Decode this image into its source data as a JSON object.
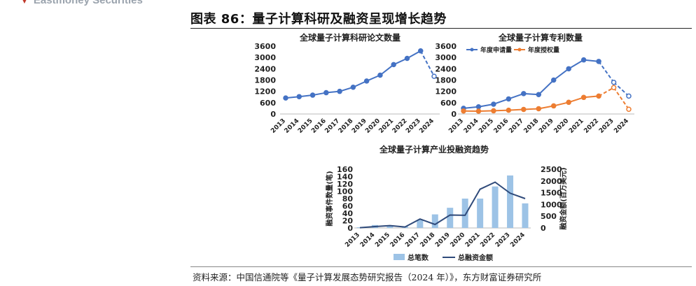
{
  "header": {
    "brand": "Eastmoney Securities"
  },
  "figure": {
    "title": "图表 86：量子计算科研及融资呈现增长趋势",
    "source": "资料来源：中国信通院等《量子计算发展态势研究报告（2024 年）》，东方财富证券研究所"
  },
  "colors": {
    "blue": "#4472c4",
    "orange": "#ed7d31",
    "bar": "#9dc3e6",
    "navy": "#2f4a7a"
  },
  "chart_data": [
    {
      "type": "line",
      "title": "全球量子计算科研论文数量",
      "categories": [
        "2013",
        "2014",
        "2015",
        "2016",
        "2017",
        "2018",
        "2019",
        "2020",
        "2021",
        "2022",
        "2023",
        "2024"
      ],
      "series": [
        {
          "values": [
            850,
            920,
            1000,
            1130,
            1200,
            1420,
            1750,
            2060,
            2620,
            2950,
            3350,
            2000
          ],
          "projected_last": true
        }
      ],
      "yticks": [
        "0",
        "600",
        "1200",
        "1800",
        "2400",
        "3000",
        "3600"
      ],
      "ylim": [
        0,
        3600
      ]
    },
    {
      "type": "line",
      "title": "全球量子计算专利数量",
      "categories": [
        "2013",
        "2014",
        "2015",
        "2016",
        "2017",
        "2018",
        "2019",
        "2020",
        "2021",
        "2022",
        "2023",
        "2024"
      ],
      "series": [
        {
          "name": "年度申请量",
          "values": [
            300,
            380,
            520,
            800,
            1080,
            1030,
            1800,
            2400,
            2870,
            2790,
            1680,
            950
          ],
          "projected_from": 10
        },
        {
          "name": "年度授权量",
          "values": [
            160,
            150,
            170,
            200,
            240,
            280,
            430,
            620,
            880,
            950,
            1400,
            250
          ],
          "projected_from": 10
        }
      ],
      "yticks": [
        "0",
        "600",
        "1200",
        "1800",
        "2400",
        "3000",
        "3600"
      ],
      "ylim": [
        0,
        3600
      ],
      "legend": "top-left"
    },
    {
      "type": "bar+line",
      "title": "全球量子计算产业投融资趋势",
      "categories": [
        "2013",
        "2014",
        "2015",
        "2016",
        "2017",
        "2018",
        "2019",
        "2020",
        "2021",
        "2022",
        "2023",
        "2024"
      ],
      "series": [
        {
          "name": "总笔数",
          "kind": "bar",
          "axis": "left",
          "values": [
            2,
            8,
            6,
            4,
            22,
            37,
            55,
            80,
            80,
            113,
            143,
            67
          ]
        },
        {
          "name": "总融资金额",
          "kind": "line",
          "axis": "right",
          "values": [
            10,
            60,
            100,
            40,
            380,
            150,
            550,
            540,
            1650,
            1950,
            1480,
            1250
          ]
        }
      ],
      "ylabel_left": "融资事件数量(笔)",
      "ylabel_right": "融资金额(百万美元)",
      "yticks_left": [
        "0",
        "20",
        "40",
        "60",
        "80",
        "100",
        "120",
        "140",
        "160"
      ],
      "yticks_right": [
        "0",
        "500",
        "1000",
        "1500",
        "2000",
        "2500"
      ],
      "ylim_left": [
        0,
        160
      ],
      "ylim_right": [
        0,
        2500
      ]
    }
  ]
}
